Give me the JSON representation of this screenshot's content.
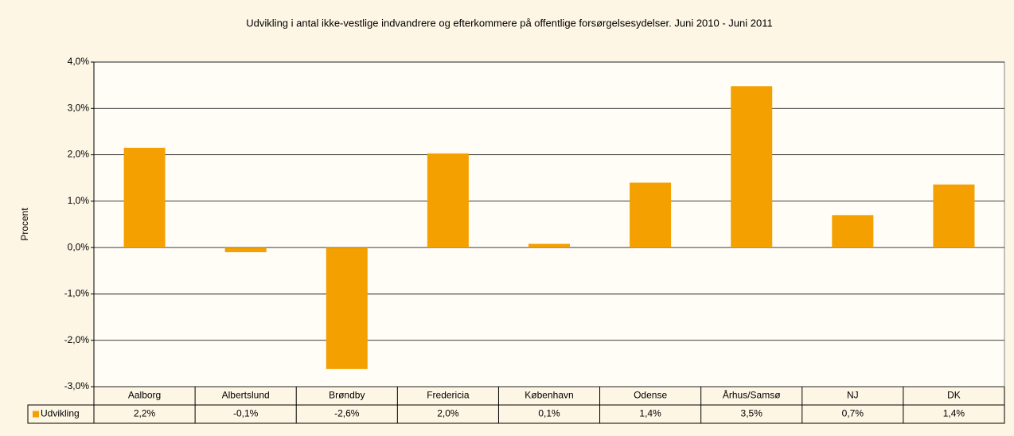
{
  "chart_data": {
    "type": "bar",
    "title": "Udvikling i antal ikke-vestlige indvandrere og efterkommere på offentlige forsørgelsesydelser. Juni 2010 - Juni 2011",
    "y_label": "Procent",
    "categories": [
      "Aalborg",
      "Albertslund",
      "Brøndby",
      "Fredericia",
      "København",
      "Odense",
      "Århus/Samsø",
      "NJ",
      "DK"
    ],
    "series": [
      {
        "name": "Udvikling",
        "color": "#f4a000",
        "values": [
          2.15,
          -0.1,
          -2.62,
          2.03,
          0.08,
          1.4,
          3.48,
          0.7,
          1.36
        ],
        "value_labels": [
          "2,2%",
          "-0,1%",
          "-2,6%",
          "2,0%",
          "0,1%",
          "1,4%",
          "3,5%",
          "0,7%",
          "1,4%"
        ]
      }
    ],
    "ylim": [
      -3,
      4
    ],
    "yticks": [
      {
        "value": -3,
        "label": "-3,0%"
      },
      {
        "value": -2,
        "label": "-2,0%"
      },
      {
        "value": -1,
        "label": "-1,0%"
      },
      {
        "value": 0,
        "label": "0,0%"
      },
      {
        "value": 1,
        "label": "1,0%"
      },
      {
        "value": 2,
        "label": "2,0%"
      },
      {
        "value": 3,
        "label": "3,0%"
      },
      {
        "value": 4,
        "label": "4,0%"
      }
    ],
    "grid": true
  }
}
